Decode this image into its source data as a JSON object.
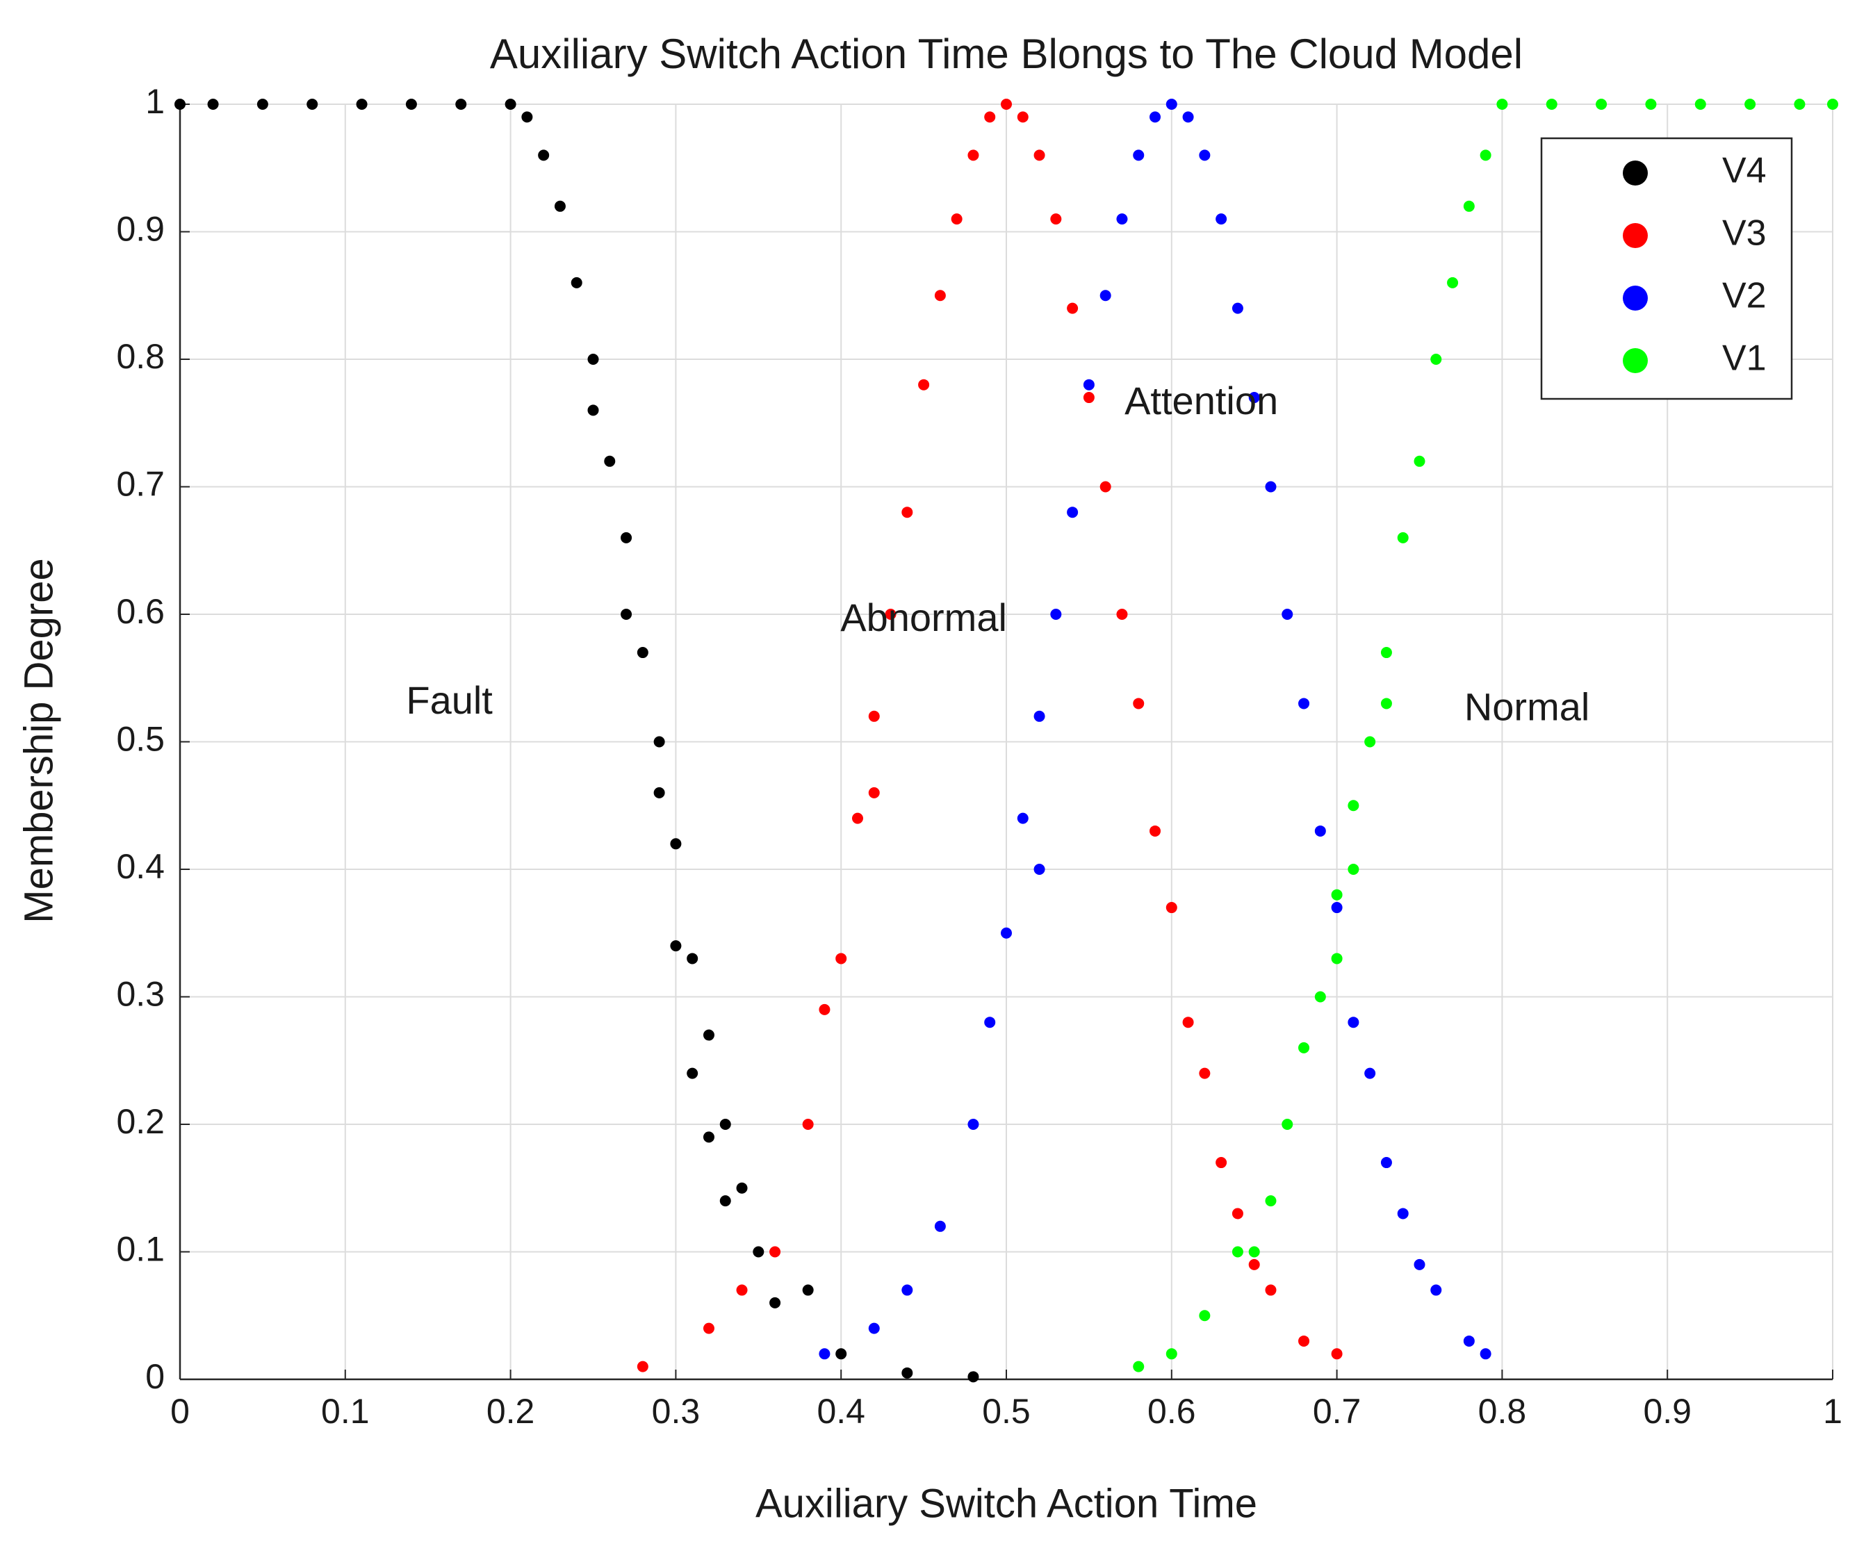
{
  "chart_data": {
    "type": "scatter",
    "title": "Auxiliary Switch Action Time Blongs to The Cloud Model",
    "x_label": "Auxiliary Switch Action Time",
    "y_label": "Membership Degree",
    "annotations": [
      "Fault",
      "Abnormal",
      "Attention",
      "Normal"
    ],
    "xlim": [
      0,
      1
    ],
    "ylim": [
      0,
      1
    ],
    "xticks": [
      0,
      0.1,
      0.2,
      0.3,
      0.4,
      0.5,
      0.6,
      0.7,
      0.8,
      0.9,
      1
    ],
    "yticks": [
      0,
      0.1,
      0.2,
      0.3,
      0.4,
      0.5,
      0.6,
      0.7,
      0.8,
      0.9,
      1
    ],
    "grid": true,
    "legend_position": "upper right",
    "series": [
      {
        "name": "V4",
        "color": "#000000",
        "x": [
          0.0,
          0.02,
          0.05,
          0.08,
          0.11,
          0.14,
          0.17,
          0.2,
          0.21,
          0.22,
          0.23,
          0.24,
          0.25,
          0.25,
          0.26,
          0.27,
          0.27,
          0.28,
          0.29,
          0.29,
          0.3,
          0.3,
          0.31,
          0.31,
          0.32,
          0.32,
          0.33,
          0.33,
          0.34,
          0.35,
          0.36,
          0.38,
          0.4,
          0.44,
          0.48
        ],
        "values": [
          1,
          1,
          1,
          1,
          1,
          1,
          1,
          1,
          0.99,
          0.96,
          0.92,
          0.86,
          0.8,
          0.76,
          0.72,
          0.66,
          0.6,
          0.57,
          0.5,
          0.46,
          0.42,
          0.34,
          0.33,
          0.24,
          0.27,
          0.19,
          0.2,
          0.14,
          0.15,
          0.1,
          0.06,
          0.07,
          0.02,
          0.005,
          0.002
        ]
      },
      {
        "name": "V3",
        "color": "#ff0000",
        "x": [
          0.28,
          0.32,
          0.34,
          0.36,
          0.38,
          0.39,
          0.4,
          0.41,
          0.42,
          0.42,
          0.43,
          0.44,
          0.45,
          0.46,
          0.47,
          0.48,
          0.49,
          0.5,
          0.51,
          0.52,
          0.53,
          0.54,
          0.55,
          0.56,
          0.57,
          0.58,
          0.59,
          0.6,
          0.61,
          0.62,
          0.63,
          0.64,
          0.65,
          0.66,
          0.68,
          0.7
        ],
        "values": [
          0.01,
          0.04,
          0.07,
          0.1,
          0.2,
          0.29,
          0.33,
          0.44,
          0.52,
          0.46,
          0.6,
          0.68,
          0.78,
          0.85,
          0.91,
          0.96,
          0.99,
          1,
          0.99,
          0.96,
          0.91,
          0.84,
          0.77,
          0.7,
          0.6,
          0.53,
          0.43,
          0.37,
          0.28,
          0.24,
          0.17,
          0.13,
          0.09,
          0.07,
          0.03,
          0.02
        ]
      },
      {
        "name": "V2",
        "color": "#0000ff",
        "x": [
          0.39,
          0.42,
          0.44,
          0.46,
          0.48,
          0.49,
          0.5,
          0.51,
          0.52,
          0.52,
          0.53,
          0.54,
          0.55,
          0.56,
          0.57,
          0.58,
          0.59,
          0.6,
          0.61,
          0.62,
          0.63,
          0.64,
          0.65,
          0.66,
          0.67,
          0.68,
          0.69,
          0.7,
          0.71,
          0.72,
          0.73,
          0.74,
          0.75,
          0.76,
          0.78,
          0.79
        ],
        "values": [
          0.02,
          0.04,
          0.07,
          0.12,
          0.2,
          0.28,
          0.35,
          0.44,
          0.52,
          0.4,
          0.6,
          0.68,
          0.78,
          0.85,
          0.91,
          0.96,
          0.99,
          1,
          0.99,
          0.96,
          0.91,
          0.84,
          0.77,
          0.7,
          0.6,
          0.53,
          0.43,
          0.37,
          0.28,
          0.24,
          0.17,
          0.13,
          0.09,
          0.07,
          0.03,
          0.02
        ]
      },
      {
        "name": "V1",
        "color": "#00ff00",
        "x": [
          0.58,
          0.6,
          0.62,
          0.64,
          0.65,
          0.66,
          0.67,
          0.68,
          0.69,
          0.7,
          0.7,
          0.71,
          0.71,
          0.72,
          0.73,
          0.73,
          0.74,
          0.75,
          0.76,
          0.77,
          0.78,
          0.79,
          0.8,
          0.83,
          0.86,
          0.89,
          0.92,
          0.95,
          0.98,
          1.0
        ],
        "values": [
          0.01,
          0.02,
          0.05,
          0.1,
          0.1,
          0.14,
          0.2,
          0.26,
          0.3,
          0.38,
          0.33,
          0.45,
          0.4,
          0.5,
          0.57,
          0.53,
          0.66,
          0.72,
          0.8,
          0.86,
          0.92,
          0.96,
          1,
          1,
          1,
          1,
          1,
          1,
          1,
          1
        ]
      }
    ]
  }
}
